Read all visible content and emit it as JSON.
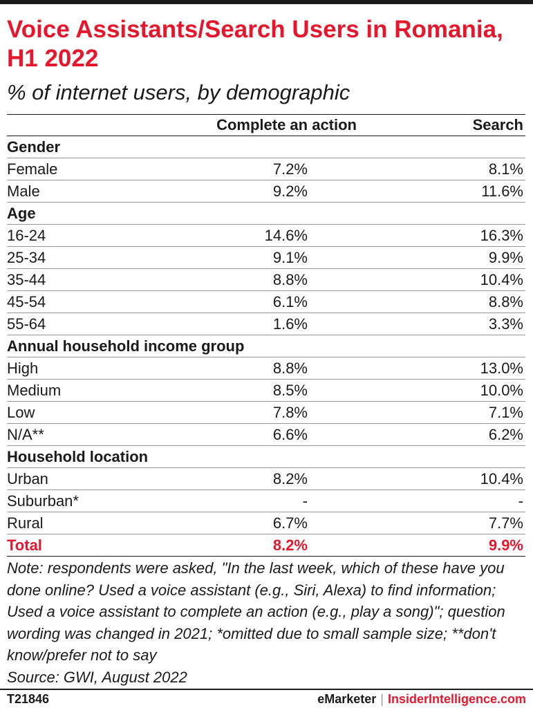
{
  "title": "Voice Assistants/Search Users in Romania, H1 2022",
  "subtitle": "% of internet users, by demographic",
  "columns": [
    "Complete an action",
    "Search"
  ],
  "rows": [
    {
      "label": "Gender",
      "group": true,
      "c1": "",
      "c2": ""
    },
    {
      "label": "Female",
      "group": false,
      "c1": "7.2%",
      "c2": "8.1%"
    },
    {
      "label": "Male",
      "group": false,
      "c1": "9.2%",
      "c2": "11.6%"
    },
    {
      "label": "Age",
      "group": true,
      "c1": "",
      "c2": ""
    },
    {
      "label": "16-24",
      "group": false,
      "c1": "14.6%",
      "c2": "16.3%"
    },
    {
      "label": "25-34",
      "group": false,
      "c1": "9.1%",
      "c2": "9.9%"
    },
    {
      "label": "35-44",
      "group": false,
      "c1": "8.8%",
      "c2": "10.4%"
    },
    {
      "label": "45-54",
      "group": false,
      "c1": "6.1%",
      "c2": "8.8%"
    },
    {
      "label": "55-64",
      "group": false,
      "c1": "1.6%",
      "c2": "3.3%"
    },
    {
      "label": "Annual household income group",
      "group": true,
      "c1": "",
      "c2": ""
    },
    {
      "label": "High",
      "group": false,
      "c1": "8.8%",
      "c2": "13.0%"
    },
    {
      "label": "Medium",
      "group": false,
      "c1": "8.5%",
      "c2": "10.0%"
    },
    {
      "label": "Low",
      "group": false,
      "c1": "7.8%",
      "c2": "7.1%"
    },
    {
      "label": "N/A**",
      "group": false,
      "c1": "6.6%",
      "c2": "6.2%"
    },
    {
      "label": "Household location",
      "group": true,
      "c1": "",
      "c2": ""
    },
    {
      "label": "Urban",
      "group": false,
      "c1": "8.2%",
      "c2": "10.4%"
    },
    {
      "label": "Suburban*",
      "group": false,
      "c1": "-",
      "c2": "-"
    },
    {
      "label": "Rural",
      "group": false,
      "c1": "6.7%",
      "c2": "7.7%"
    },
    {
      "label": "Total",
      "group": false,
      "total": true,
      "c1": "8.2%",
      "c2": "9.9%"
    }
  ],
  "chart_data": {
    "type": "table",
    "title": "Voice Assistants/Search Users in Romania, H1 2022",
    "subtitle": "% of internet users, by demographic",
    "columns": [
      "Complete an action",
      "Search"
    ],
    "groups": [
      {
        "name": "Gender",
        "rows": [
          {
            "label": "Female",
            "values": [
              7.2,
              8.1
            ]
          },
          {
            "label": "Male",
            "values": [
              9.2,
              11.6
            ]
          }
        ]
      },
      {
        "name": "Age",
        "rows": [
          {
            "label": "16-24",
            "values": [
              14.6,
              16.3
            ]
          },
          {
            "label": "25-34",
            "values": [
              9.1,
              9.9
            ]
          },
          {
            "label": "35-44",
            "values": [
              8.8,
              10.4
            ]
          },
          {
            "label": "45-54",
            "values": [
              6.1,
              8.8
            ]
          },
          {
            "label": "55-64",
            "values": [
              1.6,
              3.3
            ]
          }
        ]
      },
      {
        "name": "Annual household income group",
        "rows": [
          {
            "label": "High",
            "values": [
              8.8,
              13.0
            ]
          },
          {
            "label": "Medium",
            "values": [
              8.5,
              10.0
            ]
          },
          {
            "label": "Low",
            "values": [
              7.8,
              7.1
            ]
          },
          {
            "label": "N/A**",
            "values": [
              6.6,
              6.2
            ]
          }
        ]
      },
      {
        "name": "Household location",
        "rows": [
          {
            "label": "Urban",
            "values": [
              8.2,
              10.4
            ]
          },
          {
            "label": "Suburban*",
            "values": [
              null,
              null
            ]
          },
          {
            "label": "Rural",
            "values": [
              6.7,
              7.7
            ]
          }
        ]
      }
    ],
    "total": {
      "label": "Total",
      "values": [
        8.2,
        9.9
      ]
    }
  },
  "note": "Note: respondents were asked, \"In the last week, which of these have you done online? Used a voice assistant (e.g., Siri, Alexa) to find information; Used a voice assistant to complete an action (e.g., play a song)\"; question wording was changed in 2021; *omitted due to small sample size; **don't know/prefer not to say",
  "source": "Source: GWI, August 2022",
  "footer": {
    "id": "T21846",
    "brand1": "eMarketer",
    "separator": "|",
    "brand2": "InsiderIntelligence.com"
  },
  "colors": {
    "accent": "#e4172d",
    "text": "#1a1a1a",
    "rule": "#9a9a9a"
  }
}
